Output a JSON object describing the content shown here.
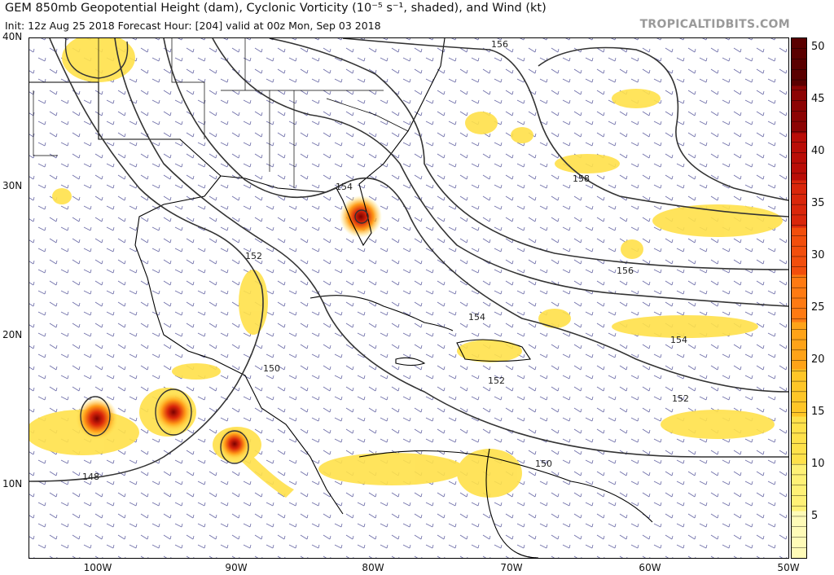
{
  "header": {
    "title": "GEM 850mb Geopotential Height (dam), Cyclonic Vorticity (10⁻⁵ s⁻¹, shaded), and Wind (kt)",
    "subtitle": "Init: 12z Aug 25 2018   Forecast Hour: [204]   valid at 00z Mon, Sep 03 2018",
    "brand": "TROPICALTIDBITS.COM"
  },
  "axes": {
    "lat_labels": [
      "40N",
      "30N",
      "20N",
      "10N"
    ],
    "lon_labels": [
      "100W",
      "90W",
      "80W",
      "70W",
      "60W",
      "50W"
    ]
  },
  "contours": {
    "labels": [
      "156",
      "154",
      "152",
      "158",
      "156",
      "154",
      "154",
      "152",
      "152",
      "150",
      "150",
      "148"
    ]
  },
  "colorbar": {
    "labels": [
      "50",
      "45",
      "40",
      "35",
      "30",
      "25",
      "20",
      "15",
      "10",
      "5"
    ],
    "colors": [
      "#fffbb8",
      "#fff176",
      "#ffe14a",
      "#ffc627",
      "#ffa318",
      "#ff7a12",
      "#f24e0c",
      "#d9260a",
      "#b90d07",
      "#8c0404",
      "#5a0000"
    ]
  }
}
